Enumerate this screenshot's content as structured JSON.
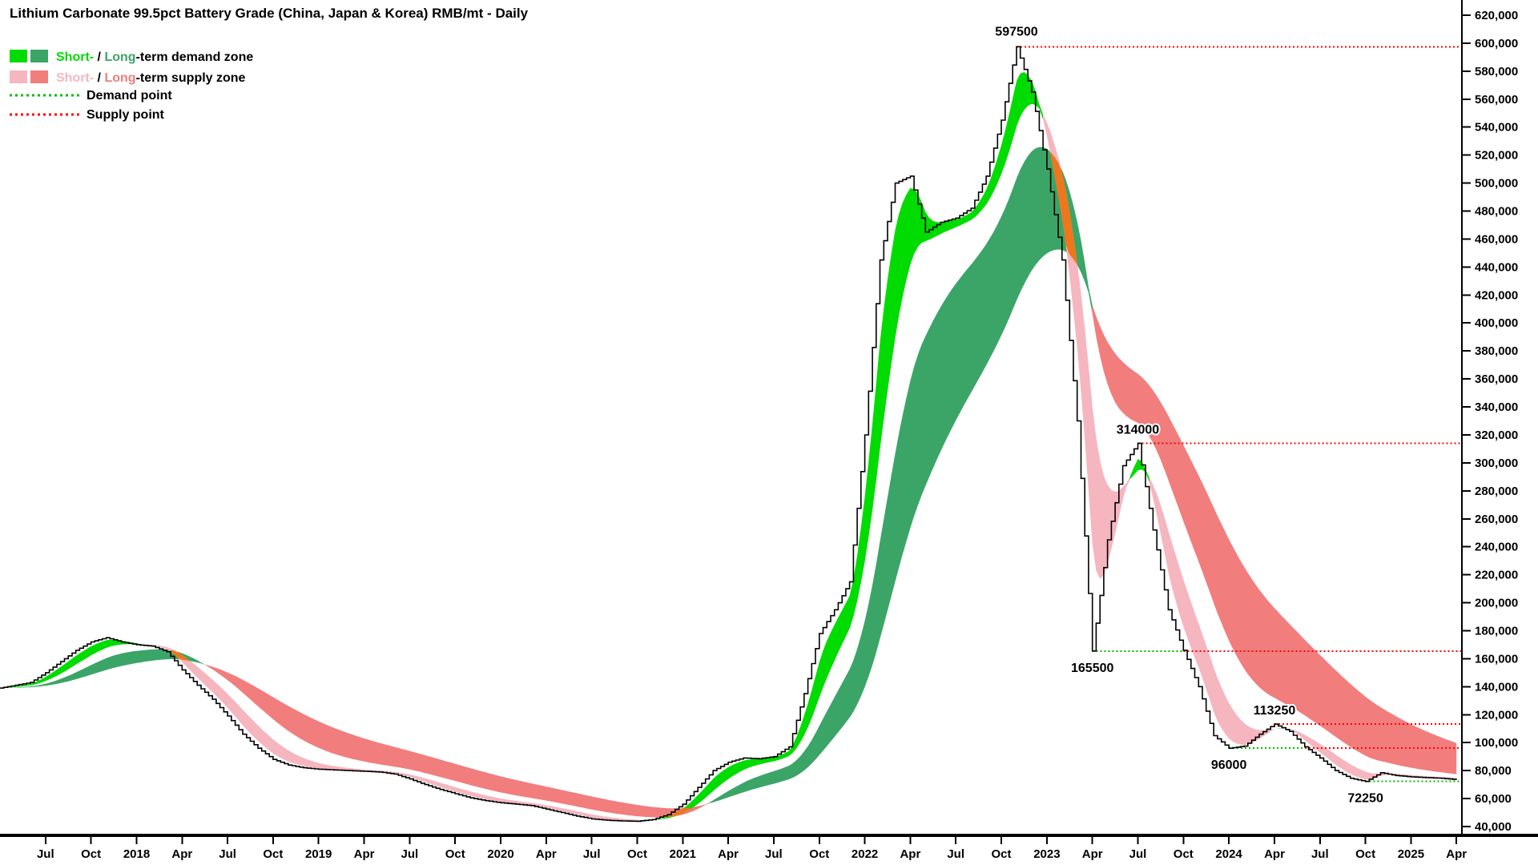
{
  "title": "Lithium Carbonate 99.5pct Battery Grade (China, Japan & Korea) RMB/mt - Daily",
  "legend": {
    "rows": [
      {
        "short": "Short-",
        "sep": " / ",
        "long": "Long",
        "suffix": "-term demand zone"
      },
      {
        "short": "Short-",
        "sep": " / ",
        "long": "Long",
        "suffix": "-term supply zone"
      },
      {
        "label": "Demand point"
      },
      {
        "label": "Supply point"
      }
    ]
  },
  "chart_data": {
    "type": "line",
    "title": "Lithium Carbonate 99.5pct Battery Grade (China, Japan & Korea) RMB/mt - Daily",
    "xlabel": "",
    "ylabel": "RMB/mt",
    "ylim": [
      40000,
      620000
    ],
    "ytick_step": 20000,
    "grid": false,
    "legend_position": "top-left",
    "x_start": "2017-04",
    "x_frequency": "monthly",
    "series": [
      {
        "name": "Price",
        "color": "#000000",
        "values": [
          139000,
          141000,
          143000,
          150000,
          158000,
          166000,
          172000,
          175000,
          172000,
          170000,
          169000,
          165000,
          152000,
          141000,
          131000,
          119000,
          106000,
          96000,
          88000,
          84000,
          82000,
          81000,
          80500,
          80000,
          79500,
          79000,
          77500,
          74000,
          70000,
          66500,
          63500,
          60500,
          58500,
          57000,
          56000,
          55000,
          52500,
          50000,
          47500,
          45500,
          44500,
          44000,
          43800,
          45000,
          48500,
          56000,
          68000,
          80000,
          86000,
          89000,
          88500,
          90000,
          97000,
          135000,
          178000,
          195000,
          215000,
          320000,
          445000,
          500000,
          505000,
          465000,
          472000,
          475000,
          482000,
          505000,
          545000,
          597500,
          565000,
          510000,
          445000,
          330000,
          165500,
          245000,
          298000,
          314000,
          252000,
          195000,
          166000,
          140000,
          105000,
          96000,
          97500,
          106000,
          113250,
          108000,
          97000,
          89000,
          80000,
          74500,
          72250,
          78500,
          76500,
          75500,
          75000,
          74500,
          73500
        ]
      }
    ],
    "bands": {
      "short_ema_weeks": [
        5,
        13
      ],
      "long_ema_weeks": [
        26,
        56
      ]
    },
    "colors": {
      "short_demand": "#00DB00",
      "long_demand": "#3BA568",
      "short_supply": "#F6B6BF",
      "long_supply": "#F27D7D",
      "transition": "#F0761B",
      "demand_point": "#00BB00",
      "supply_point": "#FF0000",
      "price": "#000000"
    },
    "annotations": [
      {
        "text": "597500",
        "m": 67,
        "value": 597500,
        "dy": -14
      },
      {
        "text": "314000",
        "m": 75,
        "value": 314000,
        "dy": -12
      },
      {
        "text": "165500",
        "m": 72,
        "value": 165500,
        "dy": 26
      },
      {
        "text": "113250",
        "m": 84,
        "value": 113250,
        "dy": -12
      },
      {
        "text": "96000",
        "m": 81,
        "value": 96000,
        "dy": 26
      },
      {
        "text": "72250",
        "m": 90,
        "value": 72250,
        "dy": 26
      }
    ],
    "levels": [
      {
        "value": 597500,
        "kind": "supply",
        "start": 67,
        "end": "edge"
      },
      {
        "value": 314000,
        "kind": "supply",
        "start": 75,
        "end": "edge"
      },
      {
        "value": 165500,
        "kind": "demand",
        "start": 72,
        "end": 78
      },
      {
        "value": 165500,
        "kind": "supply",
        "start": 78,
        "end": "edge"
      },
      {
        "value": 113250,
        "kind": "supply",
        "start": 84,
        "end": "edge"
      },
      {
        "value": 96000,
        "kind": "demand",
        "start": 81,
        "end": 86
      },
      {
        "value": 96000,
        "kind": "supply",
        "start": 86,
        "end": "edge"
      },
      {
        "value": 72250,
        "kind": "demand",
        "start": 90,
        "end": "edge"
      }
    ],
    "xticks": [
      {
        "m": 3,
        "label": "Jul"
      },
      {
        "m": 6,
        "label": "Oct"
      },
      {
        "m": 9,
        "label": "2018"
      },
      {
        "m": 12,
        "label": "Apr"
      },
      {
        "m": 15,
        "label": "Jul"
      },
      {
        "m": 18,
        "label": "Oct"
      },
      {
        "m": 21,
        "label": "2019"
      },
      {
        "m": 24,
        "label": "Apr"
      },
      {
        "m": 27,
        "label": "Jul"
      },
      {
        "m": 30,
        "label": "Oct"
      },
      {
        "m": 33,
        "label": "2020"
      },
      {
        "m": 36,
        "label": "Apr"
      },
      {
        "m": 39,
        "label": "Jul"
      },
      {
        "m": 42,
        "label": "Oct"
      },
      {
        "m": 45,
        "label": "2021"
      },
      {
        "m": 48,
        "label": "Apr"
      },
      {
        "m": 51,
        "label": "Jul"
      },
      {
        "m": 54,
        "label": "Oct"
      },
      {
        "m": 57,
        "label": "2022"
      },
      {
        "m": 60,
        "label": "Apr"
      },
      {
        "m": 63,
        "label": "Jul"
      },
      {
        "m": 66,
        "label": "Oct"
      },
      {
        "m": 69,
        "label": "2023"
      },
      {
        "m": 72,
        "label": "Apr"
      },
      {
        "m": 75,
        "label": "Jul"
      },
      {
        "m": 78,
        "label": "Oct"
      },
      {
        "m": 81,
        "label": "2024"
      },
      {
        "m": 84,
        "label": "Apr"
      },
      {
        "m": 87,
        "label": "Jul"
      },
      {
        "m": 90,
        "label": "Oct"
      },
      {
        "m": 93,
        "label": "2025"
      },
      {
        "m": 96,
        "label": "Apr"
      }
    ]
  }
}
